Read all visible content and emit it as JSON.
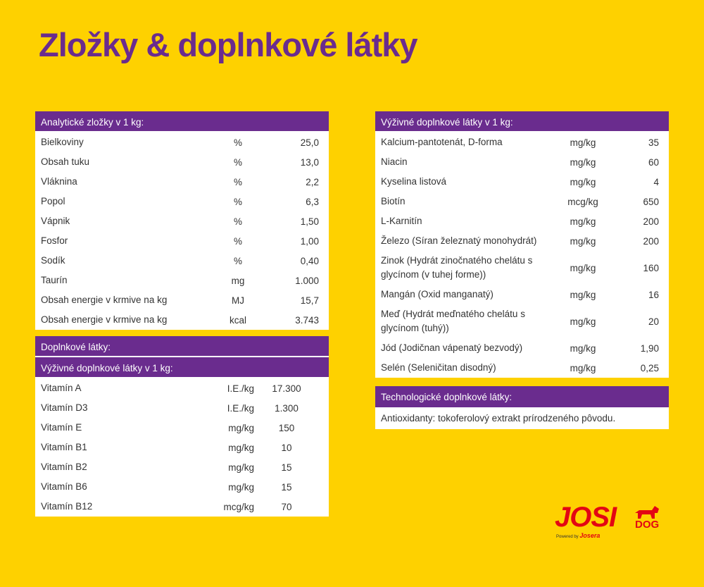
{
  "title": "Zložky & doplnkové látky",
  "analytical": {
    "header": "Analytické zložky v 1 kg:",
    "rows": [
      [
        "Bielkoviny",
        "%",
        "25,0"
      ],
      [
        "Obsah tuku",
        "%",
        "13,0"
      ],
      [
        "Vláknina",
        "%",
        "2,2"
      ],
      [
        "Popol",
        "%",
        "6,3"
      ],
      [
        "Vápnik",
        "%",
        "1,50"
      ],
      [
        "Fosfor",
        "%",
        "1,00"
      ],
      [
        "Sodík",
        "%",
        "0,40"
      ],
      [
        "Taurín",
        "mg",
        "1.000"
      ],
      [
        "Obsah energie v krmive na kg",
        "MJ",
        "15,7"
      ],
      [
        "Obsah energie v krmive na kg",
        "kcal",
        "3.743"
      ]
    ]
  },
  "additives": {
    "header": "Doplnkové látky:",
    "subheader": "Výživné doplnkové látky v 1 kg:",
    "rows": [
      [
        "Vitamín A",
        "I.E./kg",
        "17.300"
      ],
      [
        "Vitamín D3",
        "I.E./kg",
        "1.300"
      ],
      [
        "Vitamín E",
        "mg/kg",
        "150"
      ],
      [
        "Vitamín B1",
        "mg/kg",
        "10"
      ],
      [
        "Vitamín B2",
        "mg/kg",
        "15"
      ],
      [
        "Vitamín B6",
        "mg/kg",
        "15"
      ],
      [
        "Vitamín B12",
        "mcg/kg",
        "70"
      ]
    ]
  },
  "nutritional": {
    "header": "Výživné doplnkové látky v 1 kg:",
    "rows": [
      [
        "Kalcium-pantotenát, D-forma",
        "mg/kg",
        "35"
      ],
      [
        "Niacin",
        "mg/kg",
        "60"
      ],
      [
        "Kyselina listová",
        "mg/kg",
        "4"
      ],
      [
        "Biotín",
        "mcg/kg",
        "650"
      ],
      [
        "L-Karnitín",
        "mg/kg",
        "200"
      ],
      [
        "Železo (Síran železnatý monohydrát)",
        "mg/kg",
        "200"
      ],
      [
        "Zinok (Hydrát zinočnatého chelátu s glycínom (v tuhej forme))",
        "mg/kg",
        "160"
      ],
      [
        "Mangán (Oxid manganatý)",
        "mg/kg",
        "16"
      ],
      [
        "Meď (Hydrát meďnatého chelátu s glycínom (tuhý))",
        "mg/kg",
        "20"
      ],
      [
        "Jód (Jodičnan vápenatý bezvodý)",
        "mg/kg",
        "1,90"
      ],
      [
        "Selén (Seleničitan disodný)",
        "mg/kg",
        "0,25"
      ]
    ]
  },
  "technological": {
    "header": "Technologické doplnkové látky:",
    "text": "Antioxidanty: tokoferolový extrakt prírodzeného pôvodu."
  },
  "logo": {
    "brand": "JOSI",
    "sub": "DOG",
    "powered": "Powered by",
    "maker": "Josera"
  }
}
